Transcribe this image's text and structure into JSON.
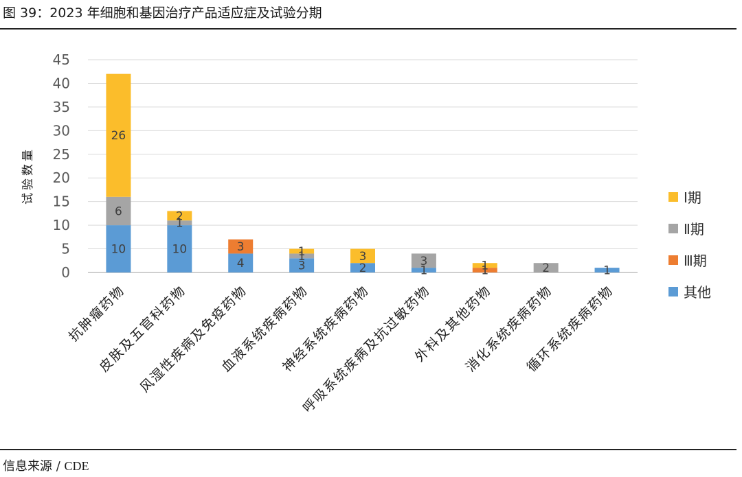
{
  "figure": {
    "title": "图 39：2023 年细胞和基因治疗产品适应症及试验分期",
    "source_label": "信息来源",
    "source_sep": "/",
    "source_org": "CDE"
  },
  "chart_data": {
    "type": "bar",
    "stacked": true,
    "title": "图 39：2023 年细胞和基因治疗产品适应症及试验分期",
    "ylabel": "试验数量",
    "xlabel": "",
    "ylim": [
      0,
      45
    ],
    "yticks": [
      0,
      5,
      10,
      15,
      20,
      25,
      30,
      35,
      40,
      45
    ],
    "grid": true,
    "legend_position": "right",
    "categories": [
      "抗肿瘤药物",
      "皮肤及五官科药物",
      "风湿性疾病及免疫药物",
      "血液系统疾病药物",
      "神经系统疾病药物",
      "呼吸系统疾病及抗过敏药物",
      "外科及其他药物",
      "消化系统疾病药物",
      "循环系统疾病药物"
    ],
    "series": [
      {
        "name": "其他",
        "color": "#5b9bd5",
        "values": [
          10,
          10,
          4,
          3,
          2,
          1,
          0,
          0,
          1
        ]
      },
      {
        "name": "Ⅲ期",
        "color": "#ed7d31",
        "values": [
          0,
          0,
          3,
          0,
          0,
          0,
          1,
          0,
          0
        ]
      },
      {
        "name": "Ⅱ期",
        "color": "#a5a5a5",
        "values": [
          6,
          1,
          0,
          1,
          0,
          3,
          0,
          2,
          0
        ]
      },
      {
        "name": "Ⅰ期",
        "color": "#fbbd2b",
        "values": [
          26,
          2,
          0,
          1,
          3,
          0,
          1,
          0,
          0
        ]
      }
    ],
    "data_labels": [
      {
        "category": "抗肿瘤药物",
        "series": "其他",
        "text": "10"
      },
      {
        "category": "抗肿瘤药物",
        "series": "Ⅱ期",
        "text": "6"
      },
      {
        "category": "抗肿瘤药物",
        "series": "Ⅰ期",
        "text": "26"
      },
      {
        "category": "皮肤及五官科药物",
        "series": "其他",
        "text": "10"
      },
      {
        "category": "皮肤及五官科药物",
        "series": "Ⅱ期",
        "text": "1"
      },
      {
        "category": "皮肤及五官科药物",
        "series": "Ⅰ期",
        "text": "2"
      },
      {
        "category": "风湿性疾病及免疫药物",
        "series": "其他",
        "text": "4"
      },
      {
        "category": "风湿性疾病及免疫药物",
        "series": "Ⅲ期",
        "text": "3"
      },
      {
        "category": "血液系统疾病药物",
        "series": "其他",
        "text": "3"
      },
      {
        "category": "血液系统疾病药物",
        "series": "Ⅱ期",
        "text": "1"
      },
      {
        "category": "血液系统疾病药物",
        "series": "Ⅰ期",
        "text": "1"
      },
      {
        "category": "神经系统疾病药物",
        "series": "其他",
        "text": "2"
      },
      {
        "category": "神经系统疾病药物",
        "series": "Ⅰ期",
        "text": "3"
      },
      {
        "category": "呼吸系统疾病及抗过敏药物",
        "series": "其他",
        "text": "1"
      },
      {
        "category": "呼吸系统疾病及抗过敏药物",
        "series": "Ⅱ期",
        "text": "3"
      },
      {
        "category": "外科及其他药物",
        "series": "Ⅲ期",
        "text": "1"
      },
      {
        "category": "外科及其他药物",
        "series": "Ⅰ期",
        "text": "1"
      },
      {
        "category": "消化系统疾病药物",
        "series": "Ⅱ期",
        "text": "2"
      },
      {
        "category": "循环系统疾病药物",
        "series": "其他",
        "text": "1"
      }
    ],
    "legend": [
      {
        "series": "Ⅰ期",
        "label": "Ⅰ期",
        "color": "#fbbd2b"
      },
      {
        "series": "Ⅱ期",
        "label": "Ⅱ期",
        "color": "#a5a5a5"
      },
      {
        "series": "Ⅲ期",
        "label": "Ⅲ期",
        "color": "#ed7d31"
      },
      {
        "series": "其他",
        "label": "其他",
        "color": "#5b9bd5"
      }
    ]
  }
}
